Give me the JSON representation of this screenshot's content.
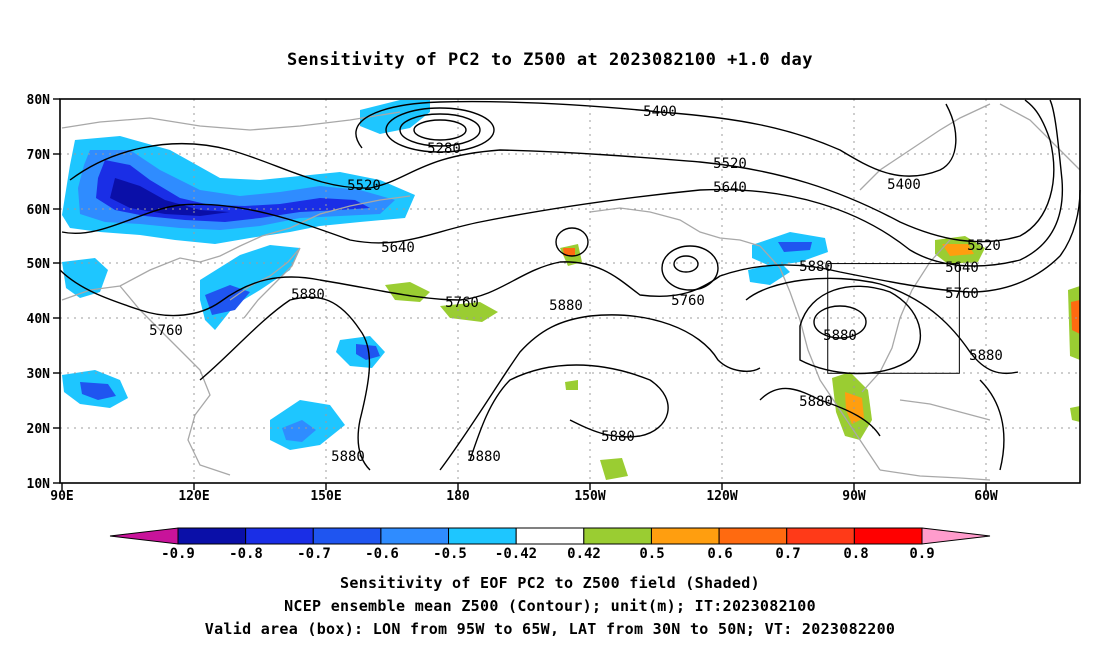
{
  "title": "Sensitivity of PC2 to Z500 at 2023082100 +1.0 day",
  "map": {
    "lat_ticks": [
      "80N",
      "70N",
      "60N",
      "50N",
      "40N",
      "30N",
      "20N",
      "10N"
    ],
    "lon_ticks": [
      "90E",
      "120E",
      "150E",
      "180",
      "150W",
      "120W",
      "90W",
      "60W"
    ],
    "lon_range_deg_east": [
      90,
      322.5
    ],
    "lat_range": [
      10,
      80
    ],
    "contour_labels": [
      "5400",
      "5280",
      "5520",
      "5640",
      "5760",
      "5880",
      "5880",
      "5760",
      "5640",
      "5520",
      "5400",
      "5880",
      "5760",
      "5640",
      "5520",
      "5880",
      "5880",
      "5880",
      "5880",
      "5880",
      "5760",
      "5880"
    ],
    "valid_box": {
      "lon": [
        -95,
        -65
      ],
      "lat": [
        30,
        50
      ]
    },
    "colors": {
      "negative": [
        "#0a0fa8",
        "#1a2ee6",
        "#1f55f0",
        "#2f8cff",
        "#1ec6ff"
      ],
      "positive": [
        "#9acd32",
        "#ff9e0f",
        "#ff6a10",
        "#ff3a18",
        "#ff0000"
      ],
      "coast": "#a8a8a8",
      "contour": "#000000"
    }
  },
  "colorbar": {
    "labels": [
      "-0.9",
      "-0.8",
      "-0.7",
      "-0.6",
      "-0.5",
      "-0.42",
      "0.42",
      "0.5",
      "0.6",
      "0.7",
      "0.8",
      "0.9"
    ],
    "colors": [
      "#0a0fa8",
      "#1a2ee6",
      "#1f55f0",
      "#2f8cff",
      "#1ec6ff",
      "#ffffff",
      "#9acd32",
      "#ff9e0f",
      "#ff6a10",
      "#ff3a18",
      "#ff0000"
    ],
    "low_end_color": "#c8139a",
    "high_end_color": "#ff9ccc"
  },
  "footer": {
    "line1": "Sensitivity of EOF PC2 to Z500 field (Shaded)",
    "line2": "NCEP ensemble mean Z500 (Contour); unit(m); IT:2023082100",
    "line3": "Valid area (box): LON from 95W to 65W, LAT from 30N to 50N; VT: 2023082200"
  }
}
